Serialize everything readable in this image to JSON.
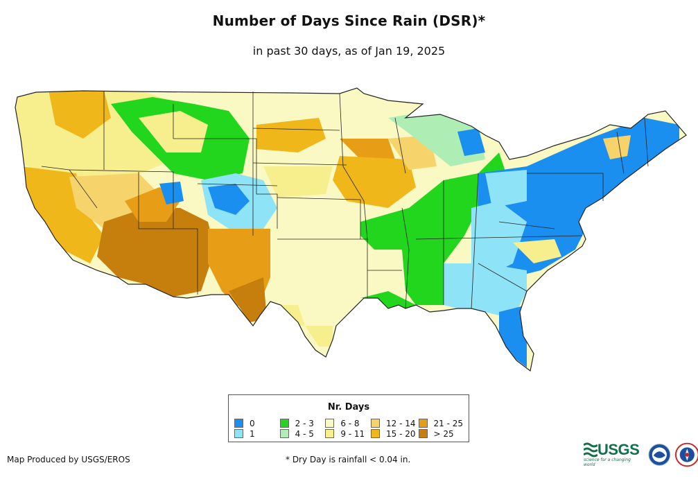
{
  "title": "Number of Days Since Rain (DSR)*",
  "subtitle": "in past 30 days, as of Jan 19, 2025",
  "legend": {
    "title": "Nr. Days",
    "items": [
      {
        "label": "0",
        "color": "#1a8ff0"
      },
      {
        "label": "1",
        "color": "#8fe3f7"
      },
      {
        "label": "2 - 3",
        "color": "#22d61e"
      },
      {
        "label": "4 - 5",
        "color": "#aeeeb4"
      },
      {
        "label": "6 - 8",
        "color": "#fbf9c3"
      },
      {
        "label": "9 - 11",
        "color": "#f7ee8d"
      },
      {
        "label": "12 - 14",
        "color": "#f7d36b"
      },
      {
        "label": "15 - 20",
        "color": "#f0b71a"
      },
      {
        "label": "21 - 25",
        "color": "#e79d16"
      },
      {
        "label": "> 25",
        "color": "#c67e0c"
      }
    ]
  },
  "credit": "Map Produced by USGS/EROS",
  "footnote": "* Dry Day is rainfall < 0.04 in.",
  "logos": {
    "usgs": "USGS",
    "usgs_tagline": "science for a changing world"
  }
}
